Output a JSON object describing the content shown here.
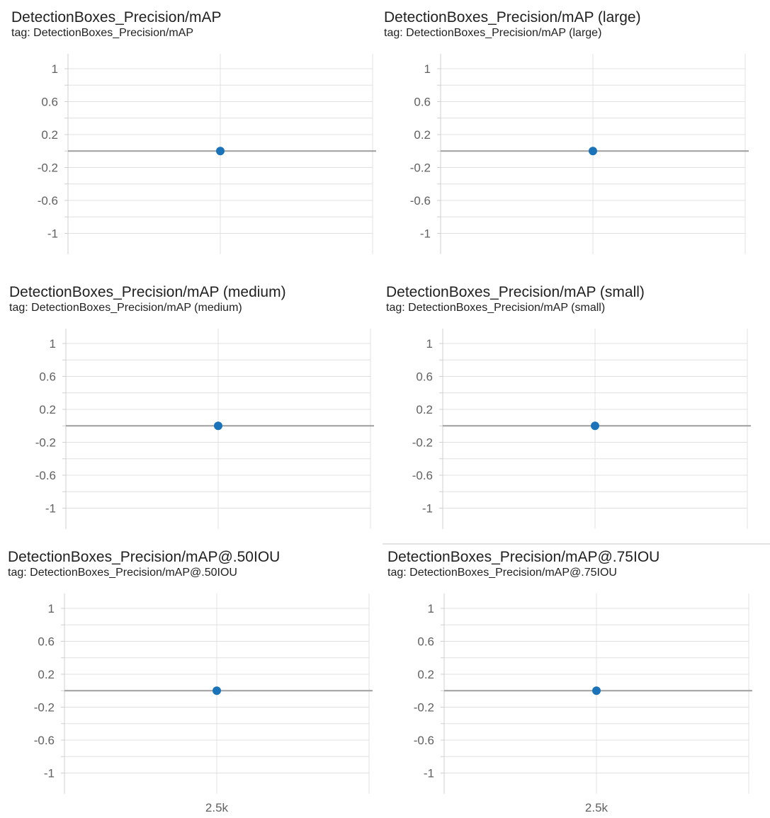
{
  "chart_data": [
    {
      "type": "scatter",
      "title": "DetectionBoxes_Precision/mAP",
      "tag": "tag: DetectionBoxes_Precision/mAP",
      "x": [
        2500
      ],
      "y": [
        0
      ],
      "xlim": [
        1500,
        3500
      ],
      "ylim": [
        -1.2,
        1.2
      ],
      "yticks": [
        1,
        0.6,
        0.2,
        -0.2,
        -0.6,
        -1
      ],
      "ytick_labels": [
        "1",
        "0.6",
        "0.2",
        "-0.2",
        "-0.6",
        "-1"
      ],
      "xticks": [
        2500
      ],
      "xtick_labels": [],
      "grid": true,
      "point_color": "#1a73b9"
    },
    {
      "type": "scatter",
      "title": "DetectionBoxes_Precision/mAP (large)",
      "tag": "tag: DetectionBoxes_Precision/mAP (large)",
      "x": [
        2500
      ],
      "y": [
        0
      ],
      "xlim": [
        1500,
        3500
      ],
      "ylim": [
        -1.2,
        1.2
      ],
      "yticks": [
        1,
        0.6,
        0.2,
        -0.2,
        -0.6,
        -1
      ],
      "ytick_labels": [
        "1",
        "0.6",
        "0.2",
        "-0.2",
        "-0.6",
        "-1"
      ],
      "xticks": [
        2500
      ],
      "xtick_labels": [],
      "grid": true,
      "point_color": "#1a73b9"
    },
    {
      "type": "scatter",
      "title": "DetectionBoxes_Precision/mAP (medium)",
      "tag": "tag: DetectionBoxes_Precision/mAP (medium)",
      "x": [
        2500
      ],
      "y": [
        0
      ],
      "xlim": [
        1500,
        3500
      ],
      "ylim": [
        -1.2,
        1.2
      ],
      "yticks": [
        1,
        0.6,
        0.2,
        -0.2,
        -0.6,
        -1
      ],
      "ytick_labels": [
        "1",
        "0.6",
        "0.2",
        "-0.2",
        "-0.6",
        "-1"
      ],
      "xticks": [
        2500
      ],
      "xtick_labels": [],
      "grid": true,
      "point_color": "#1a73b9"
    },
    {
      "type": "scatter",
      "title": "DetectionBoxes_Precision/mAP (small)",
      "tag": "tag: DetectionBoxes_Precision/mAP (small)",
      "x": [
        2500
      ],
      "y": [
        0
      ],
      "xlim": [
        1500,
        3500
      ],
      "ylim": [
        -1.2,
        1.2
      ],
      "yticks": [
        1,
        0.6,
        0.2,
        -0.2,
        -0.6,
        -1
      ],
      "ytick_labels": [
        "1",
        "0.6",
        "0.2",
        "-0.2",
        "-0.6",
        "-1"
      ],
      "xticks": [
        2500
      ],
      "xtick_labels": [],
      "grid": true,
      "point_color": "#1a73b9"
    },
    {
      "type": "scatter",
      "title": "DetectionBoxes_Precision/mAP@.50IOU",
      "tag": "tag: DetectionBoxes_Precision/mAP@.50IOU",
      "x": [
        2500
      ],
      "y": [
        0
      ],
      "xlim": [
        1500,
        3500
      ],
      "ylim": [
        -1.2,
        1.2
      ],
      "yticks": [
        1,
        0.6,
        0.2,
        -0.2,
        -0.6,
        -1
      ],
      "ytick_labels": [
        "1",
        "0.6",
        "0.2",
        "-0.2",
        "-0.6",
        "-1"
      ],
      "xticks": [
        2500
      ],
      "xtick_labels": [
        "2.5k"
      ],
      "grid": true,
      "point_color": "#1a73b9"
    },
    {
      "type": "scatter",
      "title": "DetectionBoxes_Precision/mAP@.75IOU",
      "tag": "tag: DetectionBoxes_Precision/mAP@.75IOU",
      "x": [
        2500
      ],
      "y": [
        0
      ],
      "xlim": [
        1500,
        3500
      ],
      "ylim": [
        -1.2,
        1.2
      ],
      "yticks": [
        1,
        0.6,
        0.2,
        -0.2,
        -0.6,
        -1
      ],
      "ytick_labels": [
        "1",
        "0.6",
        "0.2",
        "-0.2",
        "-0.6",
        "-1"
      ],
      "xticks": [
        2500
      ],
      "xtick_labels": [
        "2.5k"
      ],
      "grid": true,
      "point_color": "#1a73b9"
    }
  ]
}
